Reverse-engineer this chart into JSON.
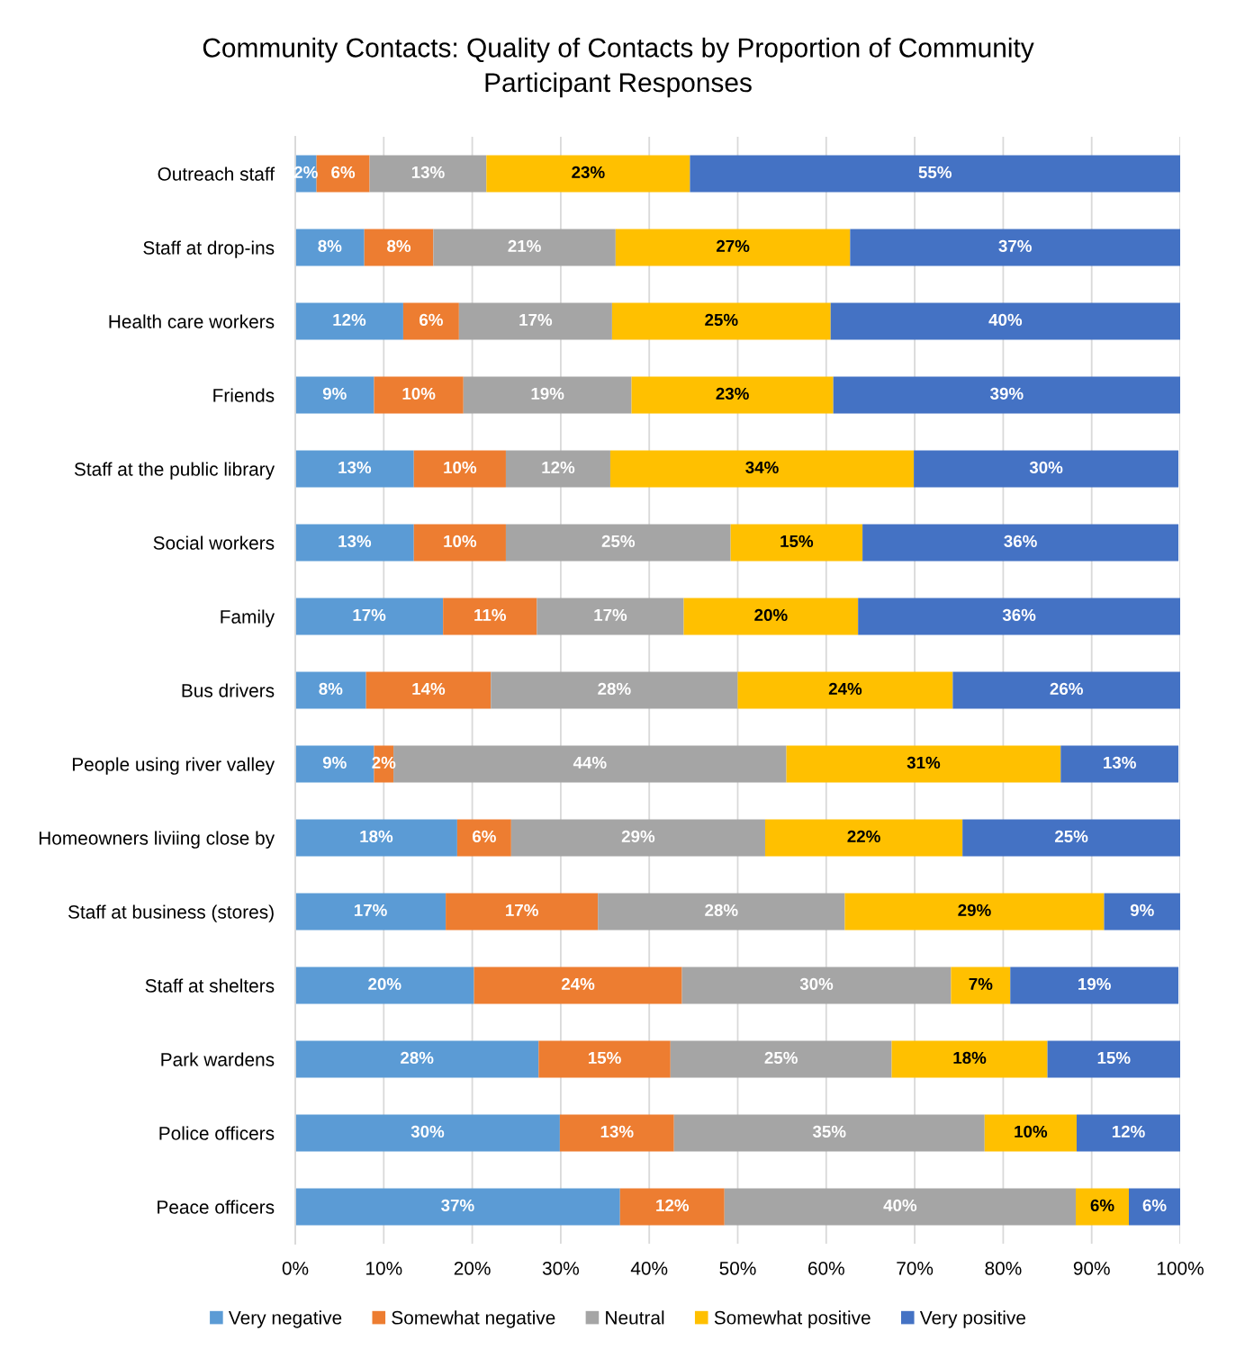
{
  "chart_data": {
    "type": "bar",
    "orientation": "horizontal",
    "stacked": true,
    "title": "Community Contacts: Quality of Contacts by Proportion of Community\nParticipant Responses",
    "categories": [
      "Outreach staff",
      "Staff at drop-ins",
      "Health care workers",
      "Friends",
      "Staff at the public library",
      "Social workers",
      "Family",
      "Bus drivers",
      "People using river valley",
      "Homeowners liviing close by",
      "Staff at business (stores)",
      "Staff at shelters",
      "Park wardens",
      "Police officers",
      "Peace officers"
    ],
    "series": [
      {
        "name": "Very negative",
        "color": "#5b9bd5",
        "values": [
          2.4,
          7.8,
          12.2,
          8.9,
          13.4,
          13.4,
          16.7,
          8.0,
          8.9,
          18.3,
          17.0,
          20.2,
          27.5,
          29.9,
          36.7
        ],
        "value_labels": [
          "2%",
          "8%",
          "12%",
          "9%",
          "13%",
          "13%",
          "17%",
          "8%",
          "9%",
          "18%",
          "17%",
          "20%",
          "28%",
          "30%",
          "37%"
        ]
      },
      {
        "name": "Somewhat negative",
        "color": "#ed7d31",
        "values": [
          6.0,
          7.8,
          6.3,
          10.1,
          10.4,
          10.4,
          10.6,
          14.1,
          2.2,
          6.1,
          17.2,
          23.5,
          14.9,
          12.9,
          11.8
        ],
        "value_labels": [
          "6%",
          "8%",
          "6%",
          "10%",
          "10%",
          "10%",
          "11%",
          "14%",
          "2%",
          "6%",
          "17%",
          "24%",
          "15%",
          "13%",
          "12%"
        ]
      },
      {
        "name": "Neutral",
        "color": "#a5a5a5",
        "values": [
          13.2,
          20.6,
          17.3,
          19.0,
          11.8,
          25.4,
          16.6,
          27.9,
          44.4,
          28.7,
          27.9,
          30.4,
          25.0,
          35.1,
          39.7
        ],
        "value_labels": [
          "13%",
          "21%",
          "17%",
          "19%",
          "12%",
          "25%",
          "17%",
          "28%",
          "44%",
          "29%",
          "28%",
          "30%",
          "25%",
          "35%",
          "40%"
        ]
      },
      {
        "name": "Somewhat positive",
        "color": "#ffc000",
        "values": [
          23.0,
          26.5,
          24.7,
          22.8,
          34.3,
          14.9,
          19.7,
          24.3,
          31.0,
          22.3,
          29.3,
          6.7,
          17.6,
          10.4,
          6.0
        ],
        "value_labels": [
          "23%",
          "27%",
          "25%",
          "23%",
          "34%",
          "15%",
          "20%",
          "24%",
          "31%",
          "22%",
          "29%",
          "7%",
          "18%",
          "10%",
          "6%"
        ]
      },
      {
        "name": "Very positive",
        "color": "#4472c4",
        "values": [
          55.4,
          37.3,
          39.5,
          39.2,
          29.9,
          35.7,
          36.4,
          25.7,
          13.3,
          24.6,
          8.6,
          19.0,
          15.0,
          11.8,
          5.9
        ],
        "value_labels": [
          "55%",
          "37%",
          "40%",
          "39%",
          "30%",
          "36%",
          "36%",
          "26%",
          "13%",
          "25%",
          "9%",
          "19%",
          "15%",
          "12%",
          "6%"
        ]
      }
    ],
    "xlim": [
      0,
      100
    ],
    "xticks": [
      {
        "value": 0,
        "label": "0%"
      },
      {
        "value": 10,
        "label": "10%"
      },
      {
        "value": 20,
        "label": "20%"
      },
      {
        "value": 30,
        "label": "30%"
      },
      {
        "value": 40,
        "label": "40%"
      },
      {
        "value": 50,
        "label": "50%"
      },
      {
        "value": 60,
        "label": "60%"
      },
      {
        "value": 70,
        "label": "70%"
      },
      {
        "value": 80,
        "label": "80%"
      },
      {
        "value": 90,
        "label": "90%"
      },
      {
        "value": 100,
        "label": "100%"
      }
    ],
    "grid": "x",
    "legend": "bottom"
  }
}
